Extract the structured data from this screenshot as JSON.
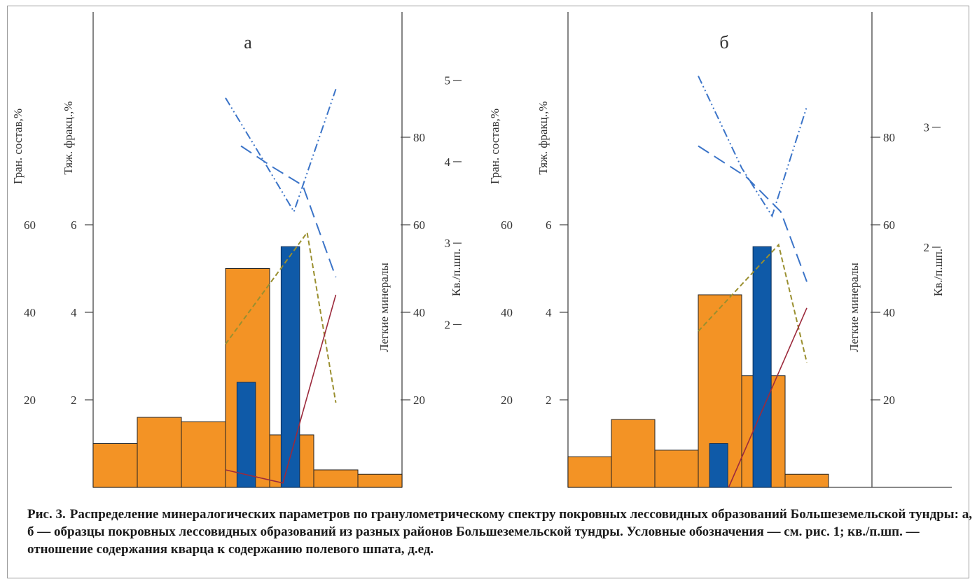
{
  "caption": {
    "lead": "Рис. 3.",
    "text": "Распределение минералогических параметров по гранулометрическому спектру покровных лессовидных образований Большеземельской тундры: а, б — образцы покровных лессовидных образований из разных районов Большеземельской тундры. Условные обозначения — см. рис. 1; кв./п.шп. — отношение содержания кварца к содержанию полевого шпата, д.ед."
  },
  "colors": {
    "granulometry": "#f39325",
    "heavy_fraction": "#0f5aa8",
    "light_minerals_1": "#3b74c8",
    "light_minerals_2": "#3b74c8",
    "quartz_feldspar": "#9a8f2f",
    "red_line": "#9c2a3c",
    "axis": "#444444"
  },
  "chart_data": [
    {
      "type": "bar",
      "title": "а",
      "axes": {
        "gran": {
          "label": "Гран. состав,%",
          "ticks": [
            20,
            40,
            60
          ],
          "range": [
            0,
            100
          ]
        },
        "heavy": {
          "label": "Тяж. фракц.,%",
          "ticks": [
            2,
            4,
            6
          ],
          "range": [
            0,
            10
          ]
        },
        "light": {
          "label": "Легкие минералы",
          "ticks": [
            20,
            40,
            60,
            80
          ],
          "range": [
            0,
            100
          ]
        },
        "qf": {
          "label": "Кв./п.шп.",
          "ticks": [
            2,
            3,
            4,
            5
          ],
          "range": [
            0,
            5.84
          ]
        }
      },
      "x_bins": 7,
      "series": [
        {
          "axis": "gran",
          "kind": "bar",
          "values": [
            10,
            16,
            15,
            50,
            12,
            4,
            3
          ]
        },
        {
          "axis": "heavy",
          "kind": "bar",
          "bins": [
            3,
            4
          ],
          "values": [
            2.4,
            5.5
          ]
        },
        {
          "axis": "light",
          "kind": "line",
          "style": "dash",
          "x": [
            3.35,
            4.1,
            4.75,
            5.5
          ],
          "values": [
            78,
            73,
            69,
            48
          ]
        },
        {
          "axis": "light",
          "kind": "line",
          "style": "dashdotdot",
          "x": [
            3.0,
            3.9,
            4.55,
            5.5
          ],
          "values": [
            89,
            74,
            63,
            91
          ]
        },
        {
          "axis": "qf",
          "kind": "line",
          "style": "short-dash",
          "x": [
            3.0,
            4.85,
            5.5
          ],
          "values": [
            1.76,
            3.13,
            1.04
          ]
        },
        {
          "axis": "light",
          "kind": "line",
          "style": "solid",
          "x": [
            3.0,
            4.3,
            5.5
          ],
          "values": [
            4,
            1,
            44
          ]
        }
      ]
    },
    {
      "type": "bar",
      "title": "б",
      "axes": {
        "gran": {
          "label": "Гран. состав,%",
          "ticks": [
            20,
            40,
            60
          ],
          "range": [
            0,
            100
          ]
        },
        "heavy": {
          "label": "Тяж. фракц.,%",
          "ticks": [
            2,
            4,
            6
          ],
          "range": [
            0,
            10
          ]
        },
        "light": {
          "label": "Легкие минералы",
          "ticks": [
            20,
            40,
            60,
            80
          ],
          "range": [
            0,
            100
          ]
        },
        "qf": {
          "label": "Кв./п.шп.",
          "ticks": [
            2,
            3
          ],
          "range": [
            0,
            3.96
          ]
        }
      },
      "x_bins": 7,
      "series": [
        {
          "axis": "gran",
          "kind": "bar",
          "values": [
            7,
            15.5,
            8.5,
            44,
            25.5,
            3,
            0
          ]
        },
        {
          "axis": "heavy",
          "kind": "bar",
          "bins": [
            3,
            4
          ],
          "values": [
            1,
            5.5
          ]
        },
        {
          "axis": "light",
          "kind": "line",
          "style": "dash",
          "x": [
            3.0,
            4.1,
            4.9,
            5.5
          ],
          "values": [
            78,
            71,
            63,
            47
          ]
        },
        {
          "axis": "light",
          "kind": "line",
          "style": "dashdotdot",
          "x": [
            3.0,
            4.0,
            4.7,
            5.5
          ],
          "values": [
            94,
            73,
            62,
            87
          ]
        },
        {
          "axis": "qf",
          "kind": "line",
          "style": "short-dash",
          "x": [
            3.0,
            4.85,
            5.5
          ],
          "values": [
            1.3,
            2.02,
            1.04
          ]
        },
        {
          "axis": "light",
          "kind": "line",
          "style": "solid",
          "x": [
            3.7,
            5.5
          ],
          "values": [
            0,
            41
          ]
        }
      ]
    }
  ]
}
